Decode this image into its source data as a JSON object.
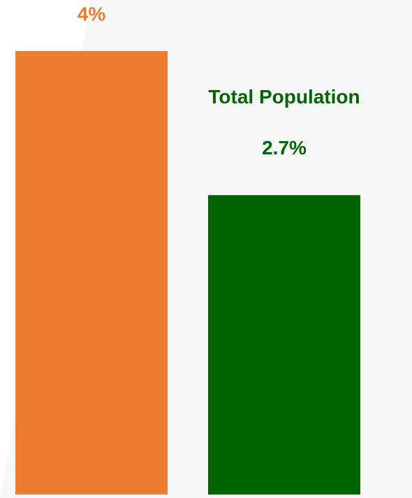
{
  "chart_data": {
    "type": "bar",
    "categories": [
      null,
      "Total Population"
    ],
    "values": [
      4,
      2.7
    ],
    "value_labels": [
      "4%",
      "2.7%"
    ],
    "colors": [
      "#ed7d31",
      "#006400"
    ]
  }
}
